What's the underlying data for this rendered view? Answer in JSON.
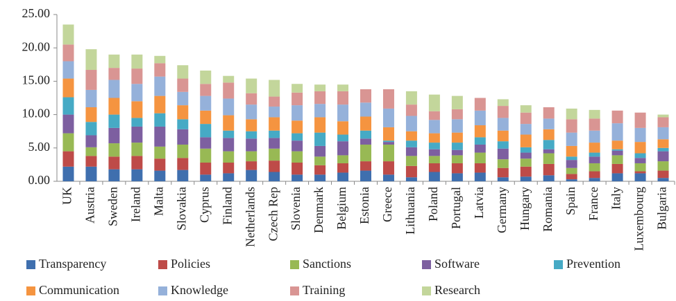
{
  "chart_data": {
    "type": "stacked_bar",
    "categories": [
      "UK",
      "Austria",
      "Sweden",
      "Ireland",
      "Malta",
      "Slovakia",
      "Cyprus",
      "Finland",
      "Netherlands",
      "Czech Rep",
      "Slovenia",
      "Denmark",
      "Belgium",
      "Estonia",
      "Greece",
      "Lithuania",
      "Poland",
      "Portugal",
      "Latvia",
      "Germany",
      "Hungary",
      "Romania",
      "Spain",
      "France",
      "Italy",
      "Luxembourg",
      "Bulgaria"
    ],
    "series": [
      {
        "name": "Transparency",
        "color": "#3f6fae",
        "values": [
          2.2,
          2.2,
          1.8,
          1.8,
          1.6,
          1.7,
          1.0,
          1.2,
          1.7,
          1.4,
          1.0,
          1.0,
          1.3,
          1.6,
          1.0,
          0.6,
          1.4,
          1.2,
          1.3,
          0.6,
          0.7,
          0.9,
          0.3,
          0.5,
          1.2,
          1.2,
          0.5
        ]
      },
      {
        "name": "Policies",
        "color": "#be4b48",
        "values": [
          2.3,
          1.6,
          1.9,
          2.0,
          1.8,
          1.8,
          1.8,
          1.6,
          1.3,
          1.7,
          1.8,
          1.4,
          1.4,
          1.4,
          2.0,
          1.7,
          1.3,
          1.5,
          1.4,
          1.4,
          1.5,
          1.7,
          0.8,
          1.0,
          1.4,
          0.3,
          1.1
        ]
      },
      {
        "name": "Sanctions",
        "color": "#98b954",
        "values": [
          2.7,
          1.3,
          2.0,
          2.0,
          1.8,
          2.0,
          2.1,
          1.7,
          1.5,
          1.8,
          1.7,
          1.3,
          1.2,
          2.5,
          2.5,
          1.5,
          1.1,
          1.2,
          1.6,
          1.3,
          1.2,
          1.6,
          0.9,
          1.2,
          1.3,
          1.2,
          1.4
        ]
      },
      {
        "name": "Software",
        "color": "#7d5fa0",
        "values": [
          2.8,
          1.8,
          2.3,
          2.4,
          3.0,
          2.3,
          1.7,
          2.0,
          1.9,
          1.6,
          1.6,
          1.6,
          2.1,
          0.9,
          0.4,
          1.3,
          1.0,
          0.8,
          1.2,
          1.6,
          0.9,
          0.6,
          1.2,
          1.0,
          0.7,
          0.8,
          1.5
        ]
      },
      {
        "name": "Prevention",
        "color": "#46aac5",
        "values": [
          2.6,
          2.0,
          2.0,
          1.3,
          2.0,
          1.5,
          2.0,
          1.1,
          1.1,
          1.1,
          1.1,
          2.0,
          1.0,
          1.2,
          0.2,
          1.0,
          1.0,
          1.1,
          1.1,
          1.1,
          0.8,
          1.4,
          0.5,
          0.6,
          0.2,
          0.7,
          0.5
        ]
      },
      {
        "name": "Communication",
        "color": "#f59440",
        "values": [
          2.8,
          2.2,
          2.5,
          2.5,
          2.6,
          2.1,
          2.0,
          2.3,
          1.8,
          2.0,
          1.9,
          2.3,
          2.0,
          2.1,
          2.0,
          1.4,
          1.4,
          1.5,
          1.8,
          1.6,
          1.9,
          1.6,
          1.6,
          1.5,
          1.3,
          1.7,
          1.3
        ]
      },
      {
        "name": "Knowledge",
        "color": "#95b1da",
        "values": [
          2.6,
          2.6,
          2.7,
          2.6,
          2.9,
          2.0,
          2.2,
          2.5,
          2.2,
          1.6,
          2.3,
          2.0,
          2.5,
          2.1,
          2.8,
          2.3,
          2.0,
          2.0,
          2.2,
          1.9,
          1.6,
          1.6,
          2.0,
          1.8,
          2.6,
          2.1,
          1.8
        ]
      },
      {
        "name": "Training",
        "color": "#d99593",
        "values": [
          2.5,
          3.0,
          1.8,
          2.3,
          2.0,
          2.0,
          1.8,
          2.4,
          1.7,
          1.5,
          1.9,
          1.9,
          2.0,
          2.0,
          2.9,
          1.7,
          1.3,
          1.5,
          1.9,
          1.8,
          1.7,
          1.7,
          2.0,
          1.8,
          1.9,
          2.3,
          1.5
        ]
      },
      {
        "name": "Research",
        "color": "#c3d69b",
        "values": [
          3.0,
          3.1,
          2.0,
          2.1,
          1.1,
          2.0,
          2.0,
          1.0,
          2.2,
          2.5,
          1.3,
          1.0,
          1.0,
          0,
          0,
          2.0,
          2.5,
          2.0,
          0,
          1.0,
          1.1,
          0,
          1.6,
          1.3,
          0,
          0,
          0.4
        ]
      }
    ],
    "ylim": [
      0,
      25
    ],
    "yticks": [
      {
        "value": 0,
        "label": "0.00"
      },
      {
        "value": 5,
        "label": "5.00"
      },
      {
        "value": 10,
        "label": "10.00"
      },
      {
        "value": 15,
        "label": "15.00"
      },
      {
        "value": 20,
        "label": "20.00"
      },
      {
        "value": 25,
        "label": "25.00"
      }
    ],
    "grid": false,
    "legend": "bottom"
  }
}
